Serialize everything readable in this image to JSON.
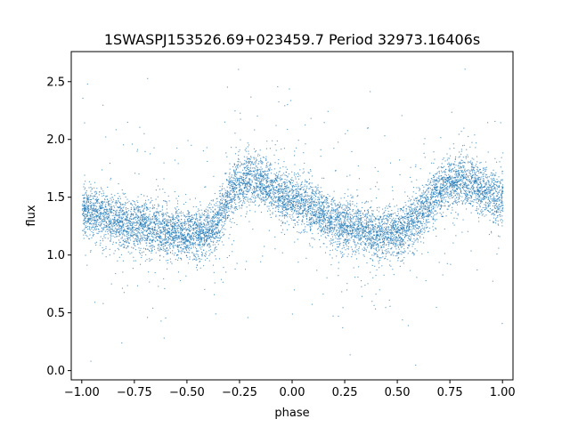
{
  "chart_data": {
    "type": "scatter",
    "title": "1SWASPJ153526.69+023459.7 Period 32973.16406s",
    "xlabel": "phase",
    "ylabel": "flux",
    "xlim": [
      -1.05,
      1.05
    ],
    "ylim": [
      -0.08,
      2.76
    ],
    "xticks": [
      -1.0,
      -0.75,
      -0.5,
      -0.25,
      0.0,
      0.25,
      0.5,
      0.75,
      1.0
    ],
    "xtick_labels": [
      "−1.00",
      "−0.75",
      "−0.50",
      "−0.25",
      "0.00",
      "0.25",
      "0.50",
      "0.75",
      "1.00"
    ],
    "yticks": [
      0.0,
      0.5,
      1.0,
      1.5,
      2.0,
      2.5
    ],
    "ytick_labels": [
      "0.0",
      "0.5",
      "1.0",
      "1.5",
      "2.0",
      "2.5"
    ],
    "grid": false,
    "legend": "none",
    "marker_color": "#1f77b4",
    "x_range": [
      -1.0,
      1.0
    ],
    "y_range": [
      0.0,
      2.65
    ],
    "trend": {
      "x": [
        -1.0,
        -0.75,
        -0.5,
        -0.4,
        -0.25,
        -0.2,
        0.0,
        0.25,
        0.4,
        0.5,
        0.75,
        0.8,
        1.0
      ],
      "y": [
        1.38,
        1.27,
        1.18,
        1.2,
        1.62,
        1.66,
        1.48,
        1.27,
        1.18,
        1.2,
        1.62,
        1.66,
        1.48
      ]
    },
    "scatter_sd": 0.11,
    "outlier_fraction": 0.06
  }
}
